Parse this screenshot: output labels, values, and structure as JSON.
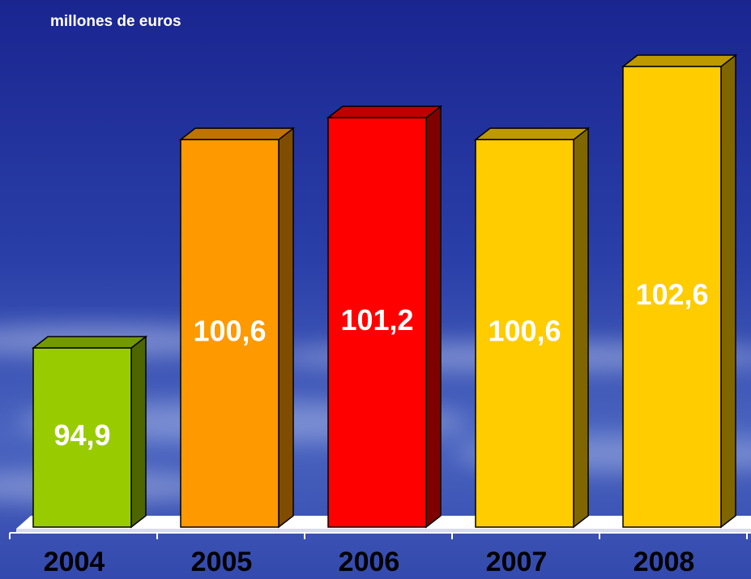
{
  "chart_data": {
    "type": "bar3d",
    "title": "millones de euros",
    "categories": [
      "2004",
      "2005",
      "2006",
      "2007",
      "2008"
    ],
    "values": [
      94.9,
      100.6,
      101.2,
      100.6,
      102.6
    ],
    "value_labels": [
      "94,9",
      "100,6",
      "101,2",
      "100,6",
      "102,6"
    ],
    "colors": [
      "#99cc00",
      "#ff9900",
      "#ff0000",
      "#ffcc00",
      "#ffcc00"
    ],
    "ylim": [
      90,
      103
    ]
  }
}
